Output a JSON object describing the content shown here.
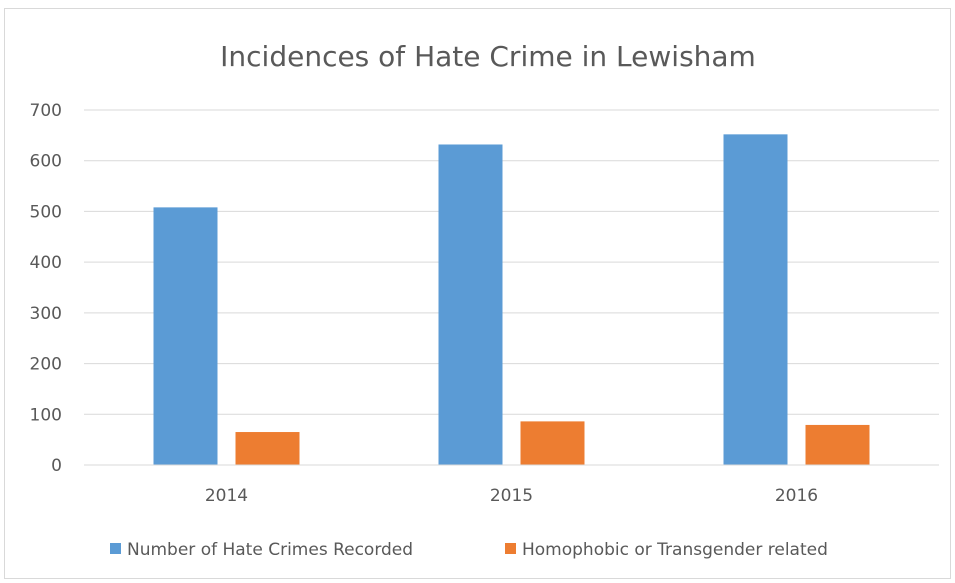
{
  "chart_data": {
    "type": "bar",
    "title": "Incidences of Hate Crime in Lewisham",
    "categories": [
      "2014",
      "2015",
      "2016"
    ],
    "series": [
      {
        "name": "Number of Hate Crimes Recorded",
        "values": [
          508,
          632,
          652
        ],
        "color": "#5b9bd5"
      },
      {
        "name": "Homophobic or Transgender related",
        "values": [
          65,
          86,
          79
        ],
        "color": "#ed7d31"
      }
    ],
    "ylim": [
      0,
      700
    ],
    "yticks": [
      0,
      100,
      200,
      300,
      400,
      500,
      600,
      700
    ],
    "grid": true,
    "legend": "bottom"
  }
}
